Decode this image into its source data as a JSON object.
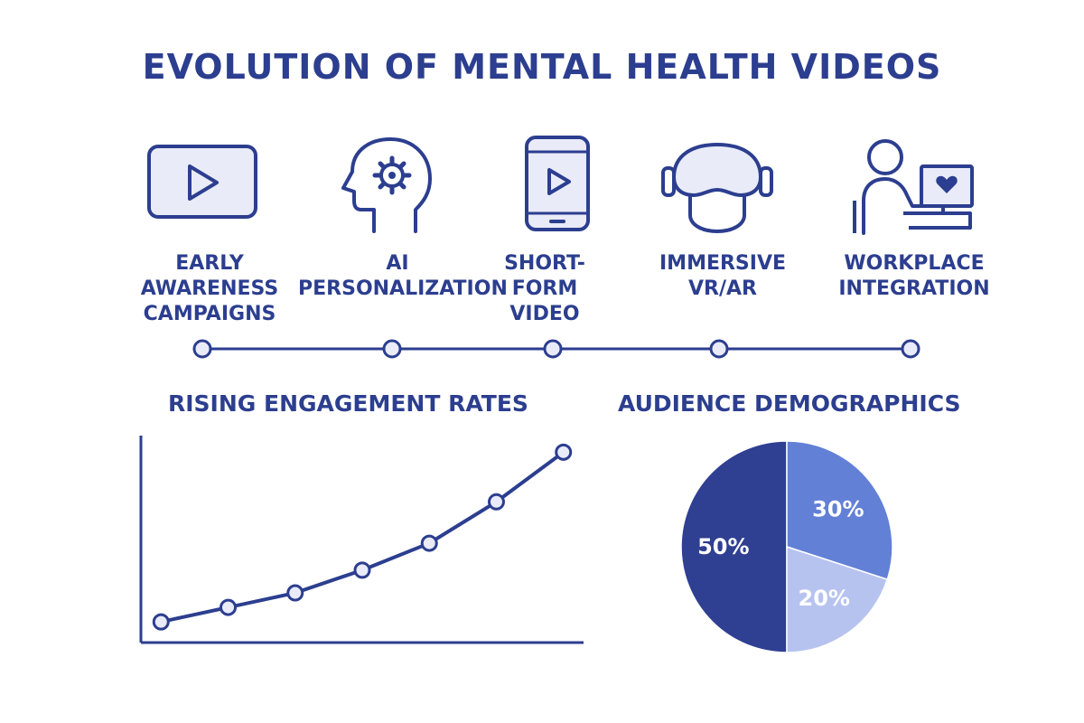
{
  "title": "EVOLUTION OF MENTAL HEALTH VIDEOS",
  "colors": {
    "primary": "#2c3e8f",
    "icon_fill": "#e9ebf8",
    "pie_dark": "#2f3f91",
    "pie_mid": "#6280d6",
    "pie_light": "#b7c3ef"
  },
  "stages": [
    {
      "label_lines": [
        "EARLY",
        "AWARENESS",
        "CAMPAIGNS"
      ],
      "icon": "video-play-icon"
    },
    {
      "label_lines": [
        "AI",
        "PERSONALIZATION"
      ],
      "icon": "head-gear-icon"
    },
    {
      "label_lines": [
        "SHORT-",
        "FORM",
        "VIDEO"
      ],
      "icon": "smartphone-play-icon"
    },
    {
      "label_lines": [
        "IMMERSIVE",
        "VR/AR"
      ],
      "icon": "vr-headset-icon"
    },
    {
      "label_lines": [
        "WORKPLACE",
        "INTEGRATION"
      ],
      "icon": "person-at-computer-icon"
    }
  ],
  "line_section_title": "RISING ENGAGEMENT RATES",
  "pie_section_title": "AUDIENCE DEMOGRAPHICS",
  "chart_data": [
    {
      "type": "line",
      "title": "RISING ENGAGEMENT RATES",
      "x": [
        1,
        2,
        3,
        4,
        5,
        6,
        7
      ],
      "series": [
        {
          "values": [
            1.0,
            1.7,
            2.4,
            3.5,
            4.8,
            6.8,
            9.2
          ]
        }
      ],
      "xlabel": "",
      "ylabel": "",
      "ylim": [
        0,
        10
      ],
      "grid": false
    },
    {
      "type": "pie",
      "title": "AUDIENCE DEMOGRAPHICS",
      "slices": [
        {
          "label": "50%",
          "value": 50
        },
        {
          "label": "30%",
          "value": 30
        },
        {
          "label": "20%",
          "value": 20
        }
      ]
    }
  ]
}
